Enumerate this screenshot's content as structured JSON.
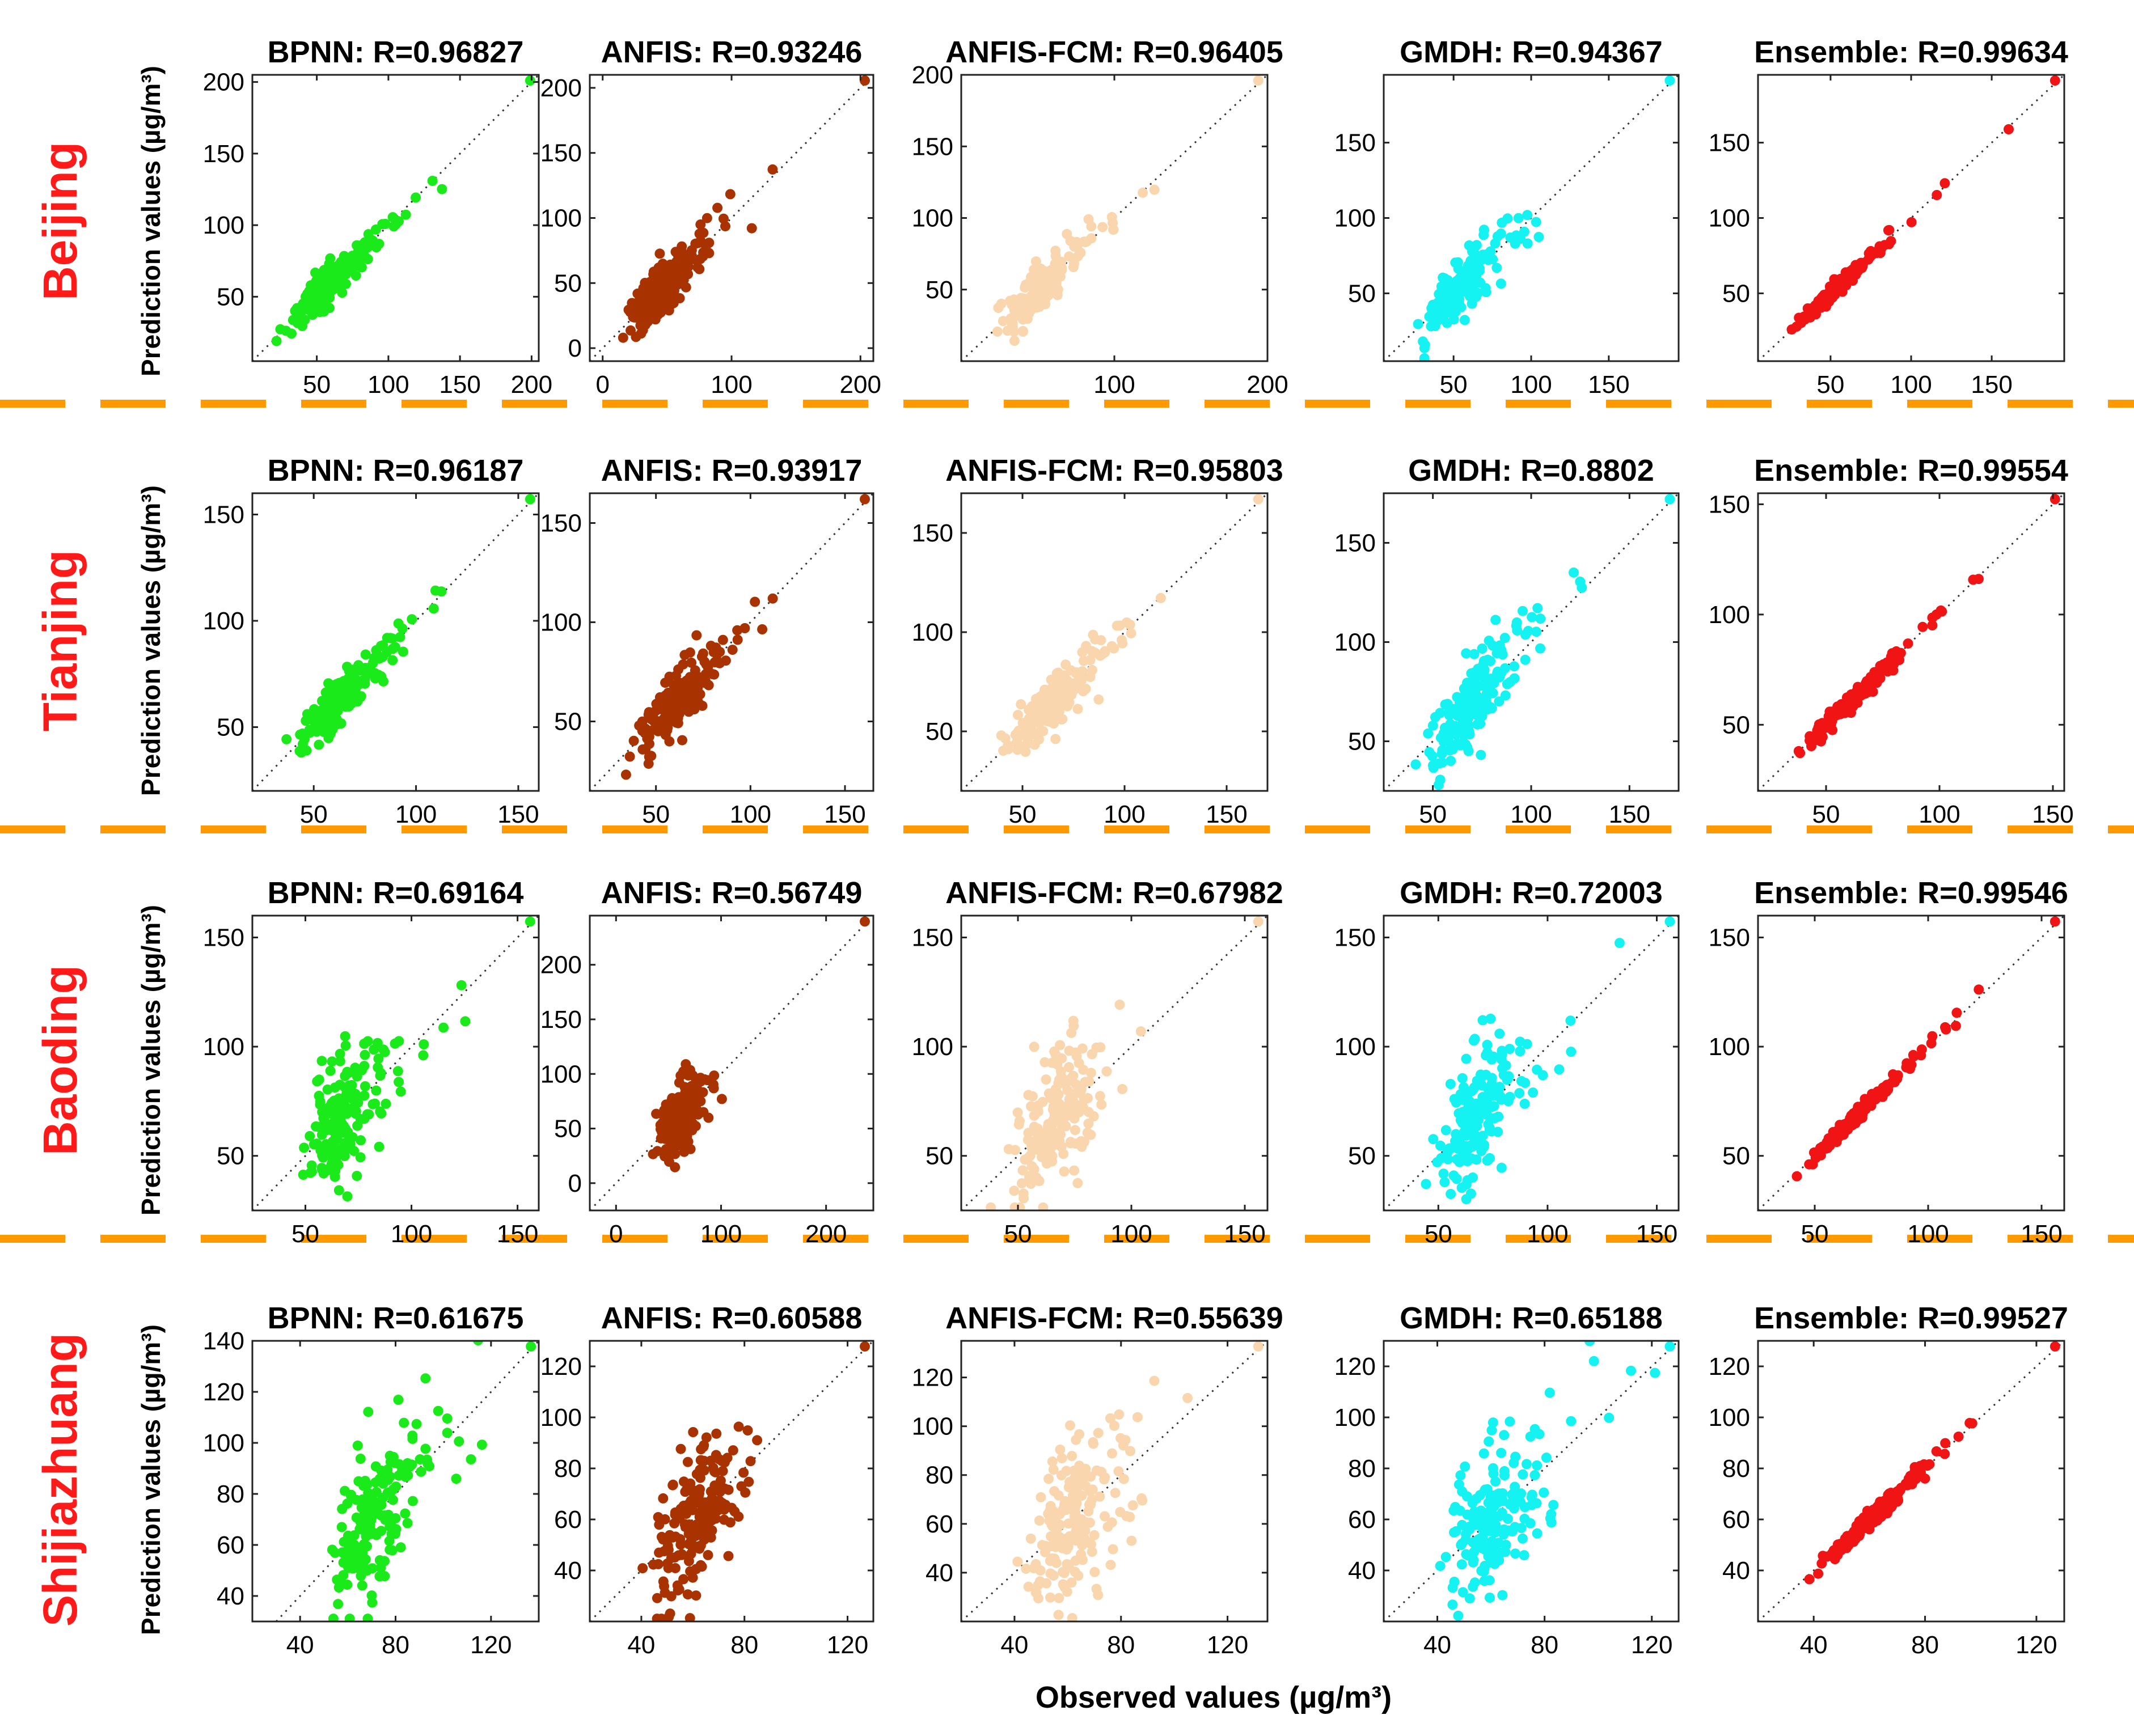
{
  "figure": {
    "ylabel": "Prediction values (µg/m³)",
    "xlabel": "Observed values (µg/m³)",
    "separator_color": "#FF9900"
  },
  "colors": {
    "BPNN": "#1AEA1A",
    "ANFIS": "#A93300",
    "ANFIS-FCM": "#F9D6AD",
    "GMDH": "#14F2F2",
    "Ensemble": "#F01414"
  },
  "chart_data": [
    {
      "type": "scatter",
      "city": "Beijing",
      "charts": [
        {
          "model": "BPNN",
          "title": "BPNN: R=0.96827",
          "R": 0.96827,
          "xlim": [
            5,
            205
          ],
          "ylim": [
            5,
            205
          ],
          "xticks": [
            50,
            100,
            150,
            200
          ],
          "yticks": [
            50,
            100,
            150,
            200
          ]
        },
        {
          "model": "ANFIS",
          "title": "ANFIS: R=0.93246",
          "R": 0.93246,
          "xlim": [
            -10,
            210
          ],
          "ylim": [
            -10,
            210
          ],
          "xticks": [
            0,
            100,
            200
          ],
          "yticks": [
            0,
            50,
            100,
            150,
            200
          ]
        },
        {
          "model": "ANFIS-FCM",
          "title": "ANFIS-FCM: R=0.96405",
          "R": 0.96405,
          "xlim": [
            0,
            200
          ],
          "ylim": [
            0,
            200
          ],
          "xticks": [
            100,
            200
          ],
          "yticks": [
            50,
            100,
            150,
            200
          ]
        },
        {
          "model": "GMDH",
          "title": "GMDH: R=0.94367",
          "R": 0.94367,
          "xlim": [
            5,
            195
          ],
          "ylim": [
            5,
            195
          ],
          "xticks": [
            50,
            100,
            150
          ],
          "yticks": [
            50,
            100,
            150
          ]
        },
        {
          "model": "Ensemble",
          "title": "Ensemble: R=0.99634",
          "R": 0.99634,
          "xlim": [
            5,
            195
          ],
          "ylim": [
            5,
            195
          ],
          "xticks": [
            50,
            100,
            150
          ],
          "yticks": [
            50,
            100,
            150
          ]
        }
      ]
    },
    {
      "type": "scatter",
      "city": "Tianjing",
      "charts": [
        {
          "model": "BPNN",
          "title": "BPNN: R=0.96187",
          "R": 0.96187,
          "xlim": [
            20,
            160
          ],
          "ylim": [
            20,
            160
          ],
          "xticks": [
            50,
            100,
            150
          ],
          "yticks": [
            50,
            100,
            150
          ]
        },
        {
          "model": "ANFIS",
          "title": "ANFIS: R=0.93917",
          "R": 0.93917,
          "xlim": [
            15,
            165
          ],
          "ylim": [
            15,
            165
          ],
          "xticks": [
            50,
            100,
            150
          ],
          "yticks": [
            50,
            100,
            150
          ]
        },
        {
          "model": "ANFIS-FCM",
          "title": "ANFIS-FCM: R=0.95803",
          "R": 0.95803,
          "xlim": [
            20,
            170
          ],
          "ylim": [
            20,
            170
          ],
          "xticks": [
            50,
            100,
            150
          ],
          "yticks": [
            50,
            100,
            150
          ]
        },
        {
          "model": "GMDH",
          "title": "GMDH: R=0.8802",
          "R": 0.8802,
          "xlim": [
            25,
            175
          ],
          "ylim": [
            25,
            175
          ],
          "xticks": [
            50,
            100,
            150
          ],
          "yticks": [
            50,
            100,
            150
          ]
        },
        {
          "model": "Ensemble",
          "title": "Ensemble: R=0.99554",
          "R": 0.99554,
          "xlim": [
            20,
            155
          ],
          "ylim": [
            20,
            155
          ],
          "xticks": [
            50,
            100,
            150
          ],
          "yticks": [
            50,
            100,
            150
          ]
        }
      ]
    },
    {
      "type": "scatter",
      "city": "Baoding",
      "charts": [
        {
          "model": "BPNN",
          "title": "BPNN: R=0.69164",
          "R": 0.69164,
          "xlim": [
            25,
            160
          ],
          "ylim": [
            25,
            160
          ],
          "xticks": [
            50,
            100,
            150
          ],
          "yticks": [
            50,
            100,
            150
          ]
        },
        {
          "model": "ANFIS",
          "title": "ANFIS: R=0.56749",
          "R": 0.56749,
          "xlim": [
            -25,
            245
          ],
          "ylim": [
            -25,
            245
          ],
          "xticks": [
            0,
            100,
            200
          ],
          "yticks": [
            0,
            50,
            100,
            150,
            200
          ]
        },
        {
          "model": "ANFIS-FCM",
          "title": "ANFIS-FCM: R=0.67982",
          "R": 0.67982,
          "xlim": [
            25,
            160
          ],
          "ylim": [
            25,
            160
          ],
          "xticks": [
            50,
            100,
            150
          ],
          "yticks": [
            50,
            100,
            150
          ]
        },
        {
          "model": "GMDH",
          "title": "GMDH: R=0.72003",
          "R": 0.72003,
          "xlim": [
            25,
            160
          ],
          "ylim": [
            25,
            160
          ],
          "xticks": [
            50,
            100,
            150
          ],
          "yticks": [
            50,
            100,
            150
          ]
        },
        {
          "model": "Ensemble",
          "title": "Ensemble: R=0.99546",
          "R": 0.99546,
          "xlim": [
            25,
            160
          ],
          "ylim": [
            25,
            160
          ],
          "xticks": [
            50,
            100,
            150
          ],
          "yticks": [
            50,
            100,
            150
          ]
        }
      ]
    },
    {
      "type": "scatter",
      "city": "Shijiazhuang",
      "charts": [
        {
          "model": "BPNN",
          "title": "BPNN: R=0.61675",
          "R": 0.61675,
          "xlim": [
            20,
            140
          ],
          "ylim": [
            30,
            140
          ],
          "xticks": [
            40,
            80,
            120
          ],
          "yticks": [
            40,
            60,
            80,
            100,
            120,
            140
          ]
        },
        {
          "model": "ANFIS",
          "title": "ANFIS: R=0.60588",
          "R": 0.60588,
          "xlim": [
            20,
            130
          ],
          "ylim": [
            20,
            130
          ],
          "xticks": [
            40,
            80,
            120
          ],
          "yticks": [
            40,
            60,
            80,
            100,
            120
          ]
        },
        {
          "model": "ANFIS-FCM",
          "title": "ANFIS-FCM: R=0.55639",
          "R": 0.55639,
          "xlim": [
            20,
            135
          ],
          "ylim": [
            20,
            135
          ],
          "xticks": [
            40,
            80,
            120
          ],
          "yticks": [
            40,
            60,
            80,
            100,
            120
          ]
        },
        {
          "model": "GMDH",
          "title": "GMDH: R=0.65188",
          "R": 0.65188,
          "xlim": [
            20,
            130
          ],
          "ylim": [
            20,
            130
          ],
          "xticks": [
            40,
            80,
            120
          ],
          "yticks": [
            40,
            60,
            80,
            100,
            120
          ]
        },
        {
          "model": "Ensemble",
          "title": "Ensemble: R=0.99527",
          "R": 0.99527,
          "xlim": [
            20,
            130
          ],
          "ylim": [
            20,
            130
          ],
          "xticks": [
            40,
            80,
            120
          ],
          "yticks": [
            40,
            60,
            80,
            100,
            120
          ]
        }
      ]
    }
  ]
}
